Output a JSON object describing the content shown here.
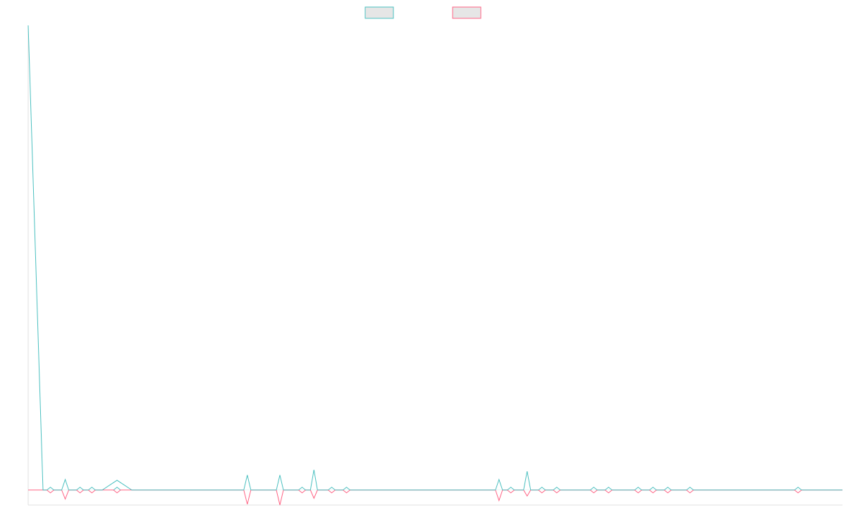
{
  "chart_data": {
    "type": "line",
    "title": "",
    "xlabel": "",
    "ylabel": "",
    "legend": {
      "placement": "top-center",
      "entries": [
        {
          "name": "",
          "color": "#4bc0c0"
        },
        {
          "name": "",
          "color": "#ff6384"
        }
      ]
    },
    "grid": false,
    "ylim": [
      -1,
      31
    ],
    "x_count": 56,
    "series": [
      {
        "name": "",
        "color": "#4bc0c0",
        "values": [
          31,
          0,
          0,
          0,
          0,
          0,
          0.65,
          0,
          0,
          0,
          0,
          0,
          0,
          0,
          0,
          0,
          0,
          0,
          0,
          0,
          0,
          0,
          0,
          0,
          0,
          0,
          0,
          0,
          0,
          0,
          0,
          0,
          0,
          0,
          0,
          0,
          0,
          0,
          0,
          0,
          0,
          0,
          0,
          0,
          0,
          0,
          0,
          0,
          0,
          0,
          0,
          0,
          0,
          0,
          0,
          0
        ]
      },
      {
        "name": "",
        "color": "#ff6384",
        "values": [
          0,
          0,
          0,
          0,
          0,
          0,
          0,
          0,
          0,
          0,
          0,
          0,
          0,
          0,
          0,
          0,
          0,
          0,
          0,
          0,
          0,
          0,
          0,
          0,
          0,
          0,
          0,
          0,
          0,
          0,
          0,
          0,
          0,
          0,
          0,
          0,
          0,
          0,
          0,
          0,
          0,
          0,
          0,
          0,
          0,
          0,
          0,
          0,
          0,
          0,
          0,
          0,
          0,
          0,
          0,
          0
        ]
      }
    ],
    "markers": [
      {
        "x": 1.5,
        "up": 0,
        "down": 0
      },
      {
        "x": 2.5,
        "up": 0.7,
        "down": 0.6
      },
      {
        "x": 3.5,
        "up": 0,
        "down": 0
      },
      {
        "x": 4.3,
        "up": 0,
        "down": 0
      },
      {
        "x": 6.0,
        "up": 0,
        "down": 0
      },
      {
        "x": 14.8,
        "up": 1.0,
        "down": 0.95
      },
      {
        "x": 17.0,
        "up": 1.0,
        "down": 1.0
      },
      {
        "x": 18.5,
        "up": 0,
        "down": 0
      },
      {
        "x": 19.3,
        "up": 1.35,
        "down": 0.55
      },
      {
        "x": 20.5,
        "up": 0,
        "down": 0
      },
      {
        "x": 21.5,
        "up": 0,
        "down": 0
      },
      {
        "x": 31.8,
        "up": 0.7,
        "down": 0.7
      },
      {
        "x": 32.6,
        "up": 0,
        "down": 0
      },
      {
        "x": 33.7,
        "up": 1.25,
        "down": 0.4
      },
      {
        "x": 34.7,
        "up": 0,
        "down": 0
      },
      {
        "x": 35.7,
        "up": 0,
        "down": 0
      },
      {
        "x": 38.2,
        "up": 0,
        "down": 0
      },
      {
        "x": 39.2,
        "up": 0,
        "down": 0
      },
      {
        "x": 41.2,
        "up": 0,
        "down": 0
      },
      {
        "x": 42.2,
        "up": 0,
        "down": 0
      },
      {
        "x": 43.2,
        "up": 0,
        "down": 0
      },
      {
        "x": 44.7,
        "up": 0,
        "down": 0
      },
      {
        "x": 52.0,
        "up": 0,
        "down": 0
      }
    ]
  }
}
